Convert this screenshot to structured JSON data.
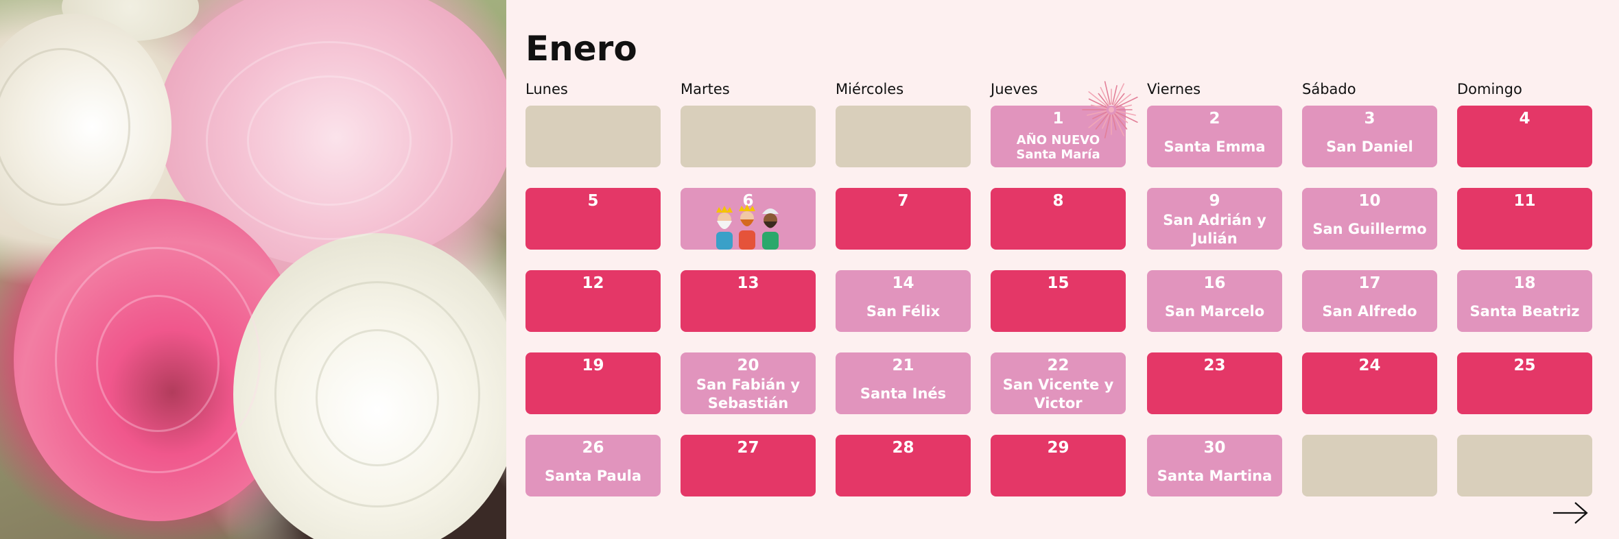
{
  "calendar": {
    "month": "Enero",
    "weekdays": [
      "Lunes",
      "Martes",
      "Miércoles",
      "Jueves",
      "Viernes",
      "Sábado",
      "Domingo"
    ],
    "colors": {
      "empty": "#d9cfbb",
      "weekday": "#e194bd",
      "holiday": "#e43767",
      "background": "#fdf0f0"
    },
    "weeks": [
      [
        {
          "type": "empty"
        },
        {
          "type": "empty"
        },
        {
          "type": "empty"
        },
        {
          "type": "pink",
          "day": "1",
          "saint": "AÑO NUEVO",
          "saint2": "Santa María"
        },
        {
          "type": "pink",
          "day": "2",
          "saint": "Santa Emma"
        },
        {
          "type": "pink",
          "day": "3",
          "saint": "San Daniel"
        },
        {
          "type": "red",
          "day": "4"
        }
      ],
      [
        {
          "type": "red",
          "day": "5"
        },
        {
          "type": "pink",
          "day": "6"
        },
        {
          "type": "red",
          "day": "7"
        },
        {
          "type": "red",
          "day": "8"
        },
        {
          "type": "pink",
          "day": "9",
          "saint": "San Adrián y Julián"
        },
        {
          "type": "pink",
          "day": "10",
          "saint": "San Guillermo"
        },
        {
          "type": "red",
          "day": "11"
        }
      ],
      [
        {
          "type": "red",
          "day": "12"
        },
        {
          "type": "red",
          "day": "13"
        },
        {
          "type": "pink",
          "day": "14",
          "saint": "San Félix"
        },
        {
          "type": "red",
          "day": "15"
        },
        {
          "type": "pink",
          "day": "16",
          "saint": "San Marcelo"
        },
        {
          "type": "pink",
          "day": "17",
          "saint": "San Alfredo"
        },
        {
          "type": "pink",
          "day": "18",
          "saint": "Santa Beatriz"
        }
      ],
      [
        {
          "type": "red",
          "day": "19"
        },
        {
          "type": "pink",
          "day": "20",
          "saint": "San Fabián y Sebastián"
        },
        {
          "type": "pink",
          "day": "21",
          "saint": "Santa Inés"
        },
        {
          "type": "pink",
          "day": "22",
          "saint": "San Vicente y Victor"
        },
        {
          "type": "red",
          "day": "23"
        },
        {
          "type": "red",
          "day": "24"
        },
        {
          "type": "red",
          "day": "25"
        }
      ],
      [
        {
          "type": "pink",
          "day": "26",
          "saint": "Santa Paula"
        },
        {
          "type": "red",
          "day": "27"
        },
        {
          "type": "red",
          "day": "28"
        },
        {
          "type": "red",
          "day": "29"
        },
        {
          "type": "pink",
          "day": "30",
          "saint": "Santa Martina"
        },
        {
          "type": "empty"
        },
        {
          "type": "empty"
        }
      ]
    ]
  },
  "icons": {
    "fireworks": "fireworks-icon",
    "three_kings": "three-kings-icon",
    "next": "arrow-right-icon"
  }
}
